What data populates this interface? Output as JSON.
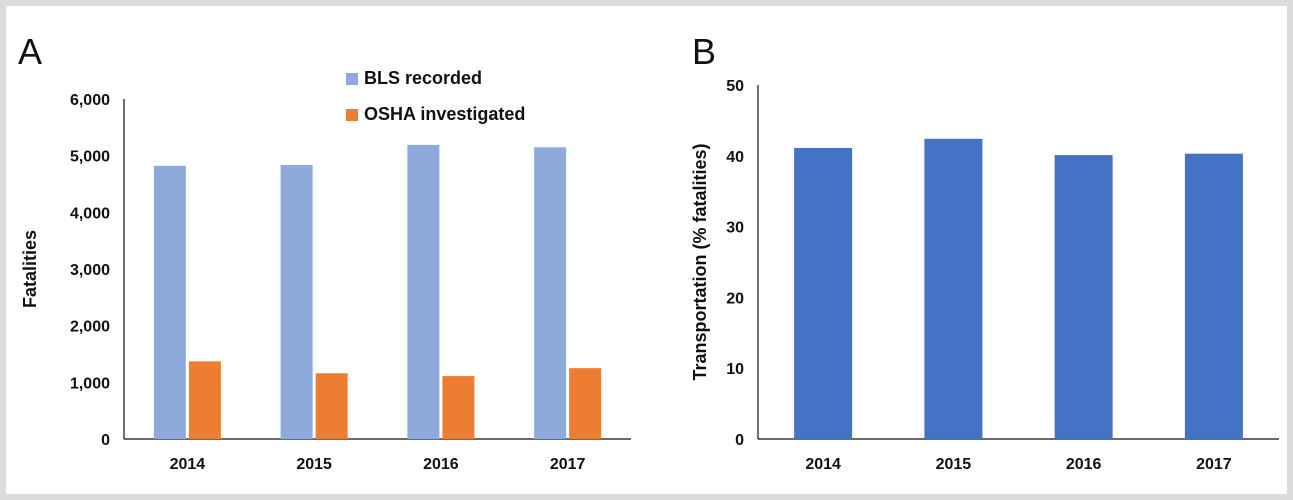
{
  "chart_data": [
    {
      "panel": "A",
      "type": "bar",
      "categories": [
        "2014",
        "2015",
        "2016",
        "2017"
      ],
      "series": [
        {
          "name": "BLS recorded",
          "color": "#8eaadb",
          "values": [
            4821,
            4836,
            5190,
            5147
          ]
        },
        {
          "name": "OSHA investigated",
          "color": "#ed7d31",
          "values": [
            1370,
            1160,
            1110,
            1250
          ]
        }
      ],
      "xlabel": "",
      "ylabel": "Fatalities",
      "ylim": [
        0,
        6000
      ],
      "yticks": [
        0,
        1000,
        2000,
        3000,
        4000,
        5000,
        6000
      ],
      "ytick_labels": [
        "0",
        "1,000",
        "2,000",
        "3,000",
        "4,000",
        "5,000",
        "6,000"
      ],
      "legend": "top-center",
      "grid": false
    },
    {
      "panel": "B",
      "type": "bar",
      "categories": [
        "2014",
        "2015",
        "2016",
        "2017"
      ],
      "series": [
        {
          "color": "#4472c4",
          "values": [
            41.1,
            42.4,
            40.1,
            40.3
          ]
        }
      ],
      "xlabel": "",
      "ylabel": "Transportation (% fatalities)",
      "ylim": [
        0,
        50
      ],
      "yticks": [
        0,
        10,
        20,
        30,
        40,
        50
      ],
      "ytick_labels": [
        "0",
        "10",
        "20",
        "30",
        "40",
        "50"
      ],
      "legend": "none",
      "grid": false
    }
  ]
}
